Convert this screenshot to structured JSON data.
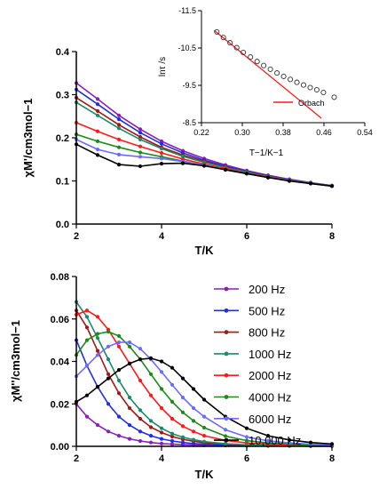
{
  "chart_data": [
    {
      "type": "line",
      "panel": "top",
      "xlabel": "T/K",
      "ylabel": "χM'/cm3mol−1",
      "xlim": [
        2,
        8
      ],
      "ylim": [
        0.0,
        0.4
      ],
      "xticks": [
        "2",
        "4",
        "6",
        "8"
      ],
      "yticks": [
        "0.0",
        "0.1",
        "0.2",
        "0.3",
        "0.4"
      ],
      "x": [
        2.0,
        2.5,
        3.0,
        3.5,
        4.0,
        4.5,
        5.0,
        5.5,
        6.0,
        6.5,
        7.0,
        7.5,
        8.0
      ],
      "series": [
        {
          "name": "200 Hz",
          "color": "#8a1fb5",
          "values": [
            0.327,
            0.29,
            0.252,
            0.22,
            0.192,
            0.17,
            0.152,
            0.137,
            0.124,
            0.113,
            0.104,
            0.096,
            0.089
          ]
        },
        {
          "name": "500 Hz",
          "color": "#1f2fe0",
          "values": [
            0.312,
            0.278,
            0.243,
            0.212,
            0.186,
            0.165,
            0.148,
            0.134,
            0.122,
            0.112,
            0.103,
            0.095,
            0.089
          ]
        },
        {
          "name": "800 Hz",
          "color": "#a01818",
          "values": [
            0.293,
            0.262,
            0.23,
            0.202,
            0.178,
            0.16,
            0.145,
            0.132,
            0.121,
            0.111,
            0.102,
            0.095,
            0.089
          ]
        },
        {
          "name": "1000 Hz",
          "color": "#1a8a68",
          "values": [
            0.282,
            0.252,
            0.222,
            0.196,
            0.175,
            0.157,
            0.143,
            0.131,
            0.12,
            0.11,
            0.102,
            0.095,
            0.089
          ]
        },
        {
          "name": "2000 Hz",
          "color": "#ff1a1a",
          "values": [
            0.235,
            0.215,
            0.196,
            0.18,
            0.165,
            0.151,
            0.139,
            0.128,
            0.118,
            0.109,
            0.101,
            0.094,
            0.088
          ]
        },
        {
          "name": "4000 Hz",
          "color": "#1a8a1a",
          "values": [
            0.208,
            0.192,
            0.178,
            0.166,
            0.156,
            0.146,
            0.136,
            0.126,
            0.117,
            0.108,
            0.1,
            0.094,
            0.088
          ]
        },
        {
          "name": "6000 Hz",
          "color": "#6b6bff",
          "values": [
            0.196,
            0.173,
            0.161,
            0.156,
            0.152,
            0.145,
            0.136,
            0.126,
            0.117,
            0.108,
            0.1,
            0.094,
            0.088
          ]
        },
        {
          "name": "10,000 Hz",
          "color": "#000000",
          "values": [
            0.185,
            0.16,
            0.138,
            0.134,
            0.14,
            0.141,
            0.135,
            0.126,
            0.117,
            0.108,
            0.1,
            0.094,
            0.088
          ]
        }
      ],
      "inset": {
        "xlabel": "T−1/K−1",
        "ylabel": "lnτ /s",
        "xlim": [
          0.22,
          0.54
        ],
        "ylim": [
          -11.5,
          -8.5
        ],
        "xticks": [
          "0.22",
          "0.30",
          "0.38",
          "0.46",
          "0.54"
        ],
        "yticks": [
          "-8.5",
          "-9.5",
          "-10.5",
          "-11.5"
        ],
        "points": {
          "x": [
            0.25,
            0.263,
            0.276,
            0.289,
            0.302,
            0.316,
            0.329,
            0.342,
            0.355,
            0.368,
            0.381,
            0.394,
            0.407,
            0.42,
            0.433,
            0.446,
            0.459,
            0.48
          ],
          "y": [
            -10.93,
            -10.78,
            -10.64,
            -10.51,
            -10.38,
            -10.26,
            -10.14,
            -10.03,
            -9.93,
            -9.83,
            -9.74,
            -9.66,
            -9.58,
            -9.51,
            -9.44,
            -9.38,
            -9.31,
            -9.18
          ]
        },
        "fit": {
          "name": "Orbach",
          "color": "#ff1a1a",
          "x": [
            0.245,
            0.455
          ],
          "y": [
            -10.97,
            -8.62
          ]
        }
      }
    },
    {
      "type": "line",
      "panel": "bottom",
      "xlabel": "T/K",
      "ylabel": "χM''/cm3mol−1",
      "xlim": [
        2,
        8
      ],
      "ylim": [
        0.0,
        0.08
      ],
      "xticks": [
        "2",
        "4",
        "6",
        "8"
      ],
      "yticks": [
        "0.00",
        "0.02",
        "0.04",
        "0.06",
        "0.08"
      ],
      "x": [
        2.0,
        2.25,
        2.5,
        2.75,
        3.0,
        3.25,
        3.5,
        3.75,
        4.0,
        4.25,
        4.5,
        4.75,
        5.0,
        5.5,
        6.0,
        6.5,
        7.0,
        7.5,
        8.0
      ],
      "series": [
        {
          "name": "200 Hz",
          "color": "#8a1fb5",
          "values": [
            0.02,
            0.014,
            0.01,
            0.007,
            0.005,
            0.0035,
            0.0025,
            0.0018,
            0.0013,
            0.001,
            0.0008,
            0.0006,
            0.0005,
            0.0004,
            0.0003,
            0.0002,
            0.0002,
            0.0001,
            0.0001
          ]
        },
        {
          "name": "500 Hz",
          "color": "#1f2fe0",
          "values": [
            0.05,
            0.038,
            0.028,
            0.02,
            0.014,
            0.01,
            0.007,
            0.005,
            0.0035,
            0.0025,
            0.0018,
            0.0013,
            0.001,
            0.0006,
            0.0004,
            0.0003,
            0.0002,
            0.0001,
            0.0001
          ]
        },
        {
          "name": "800 Hz",
          "color": "#a01818",
          "values": [
            0.064,
            0.056,
            0.045,
            0.034,
            0.025,
            0.018,
            0.013,
            0.009,
            0.0065,
            0.0046,
            0.0033,
            0.0024,
            0.0017,
            0.001,
            0.0006,
            0.0004,
            0.0003,
            0.0002,
            0.0001
          ]
        },
        {
          "name": "1000 Hz",
          "color": "#1a8a68",
          "values": [
            0.068,
            0.061,
            0.051,
            0.041,
            0.031,
            0.023,
            0.017,
            0.012,
            0.0085,
            0.006,
            0.0043,
            0.0031,
            0.0022,
            0.0012,
            0.0007,
            0.0004,
            0.0003,
            0.0002,
            0.0001
          ]
        },
        {
          "name": "2000 Hz",
          "color": "#ff1a1a",
          "values": [
            0.062,
            0.064,
            0.061,
            0.055,
            0.047,
            0.039,
            0.031,
            0.024,
            0.018,
            0.013,
            0.0095,
            0.007,
            0.005,
            0.0028,
            0.0016,
            0.001,
            0.0006,
            0.0004,
            0.0002
          ]
        },
        {
          "name": "4000 Hz",
          "color": "#1a8a1a",
          "values": [
            0.043,
            0.05,
            0.053,
            0.054,
            0.052,
            0.047,
            0.041,
            0.034,
            0.027,
            0.021,
            0.016,
            0.012,
            0.0088,
            0.0048,
            0.0027,
            0.0016,
            0.001,
            0.0006,
            0.0004
          ]
        },
        {
          "name": "6000 Hz",
          "color": "#6b6bff",
          "values": [
            0.033,
            0.038,
            0.043,
            0.047,
            0.049,
            0.049,
            0.046,
            0.041,
            0.035,
            0.029,
            0.023,
            0.018,
            0.014,
            0.0078,
            0.0044,
            0.0026,
            0.0016,
            0.001,
            0.0006
          ]
        },
        {
          "name": "10,000 Hz",
          "color": "#000000",
          "values": [
            0.021,
            0.024,
            0.028,
            0.032,
            0.036,
            0.039,
            0.041,
            0.0415,
            0.04,
            0.037,
            0.032,
            0.027,
            0.022,
            0.014,
            0.0085,
            0.005,
            0.003,
            0.0018,
            0.0011
          ]
        }
      ]
    }
  ]
}
